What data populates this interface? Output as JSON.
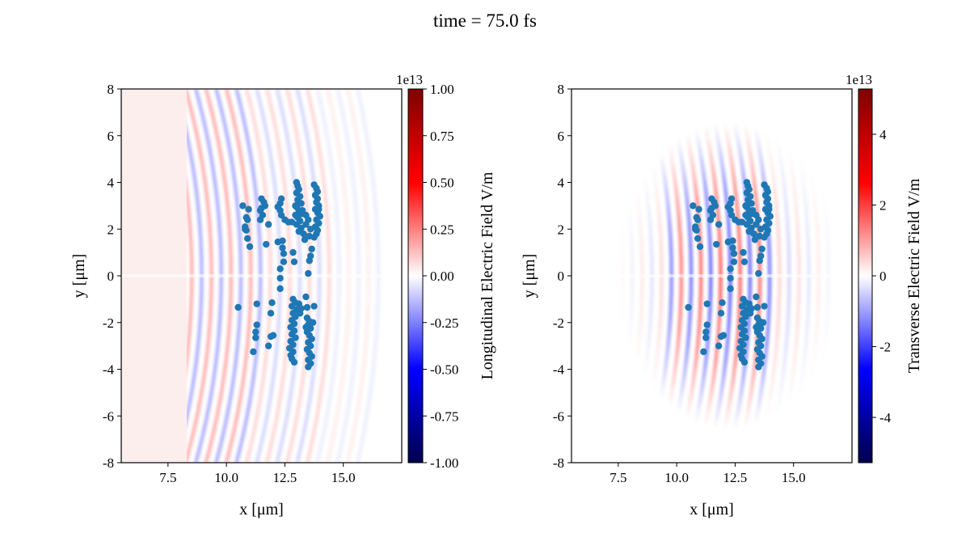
{
  "chart_data": {
    "title": "time = 75.0 fs",
    "panels": [
      {
        "type": "heatmap+scatter",
        "xlabel": "x [μm]",
        "ylabel": "y [μm]",
        "xlim": [
          5.5,
          17.5
        ],
        "ylim": [
          -8,
          8
        ],
        "xticks": [
          7.5,
          10.0,
          12.5,
          15.0
        ],
        "xtick_labels": [
          "7.5",
          "10.0",
          "12.5",
          "15.0"
        ],
        "yticks": [
          8,
          6,
          4,
          2,
          0,
          -2,
          -4,
          -6,
          -8
        ],
        "ytick_labels": [
          "8",
          "6",
          "4",
          "2",
          "0",
          "-2",
          "-4",
          "-6",
          "-8"
        ],
        "field": "longitudinal",
        "colorbar": {
          "label": "Longitudinal Electric Field V/m",
          "offset_text": "1e13",
          "vlim": [
            -1.0,
            1.0
          ],
          "ticks": [
            1.0,
            0.75,
            0.5,
            0.25,
            0.0,
            -0.25,
            -0.5,
            -0.75,
            -1.0
          ],
          "tick_labels": [
            "1.00",
            "0.75",
            "0.50",
            "0.25",
            "0.00",
            "-0.25",
            "-0.50",
            "-0.75",
            "-1.00"
          ],
          "colormap": "seismic"
        }
      },
      {
        "type": "heatmap+scatter",
        "xlabel": "x [μm]",
        "ylabel": "y [μm]",
        "xlim": [
          5.5,
          17.5
        ],
        "ylim": [
          -8,
          8
        ],
        "xticks": [
          7.5,
          10.0,
          12.5,
          15.0
        ],
        "xtick_labels": [
          "7.5",
          "10.0",
          "12.5",
          "15.0"
        ],
        "yticks": [
          8,
          6,
          4,
          2,
          0,
          -2,
          -4,
          -6,
          -8
        ],
        "ytick_labels": [
          "8",
          "6",
          "4",
          "2",
          "0",
          "-2",
          "-4",
          "-6",
          "-8"
        ],
        "field": "transverse",
        "colorbar": {
          "label": "Transverse Electric Field V/m",
          "offset_text": "1e13",
          "vlim": [
            -5.28,
            5.28
          ],
          "ticks": [
            4,
            2,
            0,
            -2,
            -4
          ],
          "tick_labels": [
            "4",
            "2",
            "0",
            "-2",
            "-4"
          ],
          "colormap": "seismic"
        }
      }
    ],
    "scatter_color": "#1f77b4",
    "particles": [
      [
        10.7,
        3.0
      ],
      [
        10.95,
        2.85
      ],
      [
        10.85,
        2.5
      ],
      [
        10.9,
        2.4
      ],
      [
        10.8,
        2.1
      ],
      [
        10.85,
        1.95
      ],
      [
        10.9,
        1.6
      ],
      [
        11.0,
        1.25
      ],
      [
        10.8,
        2.0
      ],
      [
        11.5,
        3.3
      ],
      [
        11.6,
        3.15
      ],
      [
        11.65,
        3.0
      ],
      [
        11.45,
        2.8
      ],
      [
        11.5,
        2.9
      ],
      [
        11.45,
        2.4
      ],
      [
        11.8,
        2.2
      ],
      [
        11.7,
        1.35
      ],
      [
        11.55,
        2.6
      ],
      [
        12.35,
        3.3
      ],
      [
        12.2,
        2.95
      ],
      [
        12.3,
        2.8
      ],
      [
        12.35,
        2.6
      ],
      [
        12.5,
        2.4
      ],
      [
        12.65,
        2.3
      ],
      [
        12.8,
        2.3
      ],
      [
        12.3,
        3.1
      ],
      [
        13.0,
        4.0
      ],
      [
        13.05,
        3.85
      ],
      [
        13.1,
        3.7
      ],
      [
        13.0,
        3.55
      ],
      [
        13.15,
        3.4
      ],
      [
        13.05,
        3.25
      ],
      [
        13.2,
        3.1
      ],
      [
        13.0,
        2.95
      ],
      [
        13.1,
        2.8
      ],
      [
        13.2,
        2.65
      ],
      [
        13.05,
        2.5
      ],
      [
        13.15,
        2.35
      ],
      [
        13.0,
        2.2
      ],
      [
        13.2,
        2.05
      ],
      [
        13.1,
        1.9
      ],
      [
        12.95,
        3.0
      ],
      [
        13.25,
        2.8
      ],
      [
        12.95,
        2.6
      ],
      [
        13.75,
        3.9
      ],
      [
        13.85,
        3.75
      ],
      [
        13.9,
        3.6
      ],
      [
        13.8,
        3.45
      ],
      [
        13.9,
        3.3
      ],
      [
        13.85,
        3.15
      ],
      [
        13.95,
        3.0
      ],
      [
        13.8,
        2.85
      ],
      [
        13.9,
        2.7
      ],
      [
        14.0,
        2.55
      ],
      [
        13.85,
        2.4
      ],
      [
        13.95,
        2.25
      ],
      [
        13.8,
        2.1
      ],
      [
        13.9,
        1.95
      ],
      [
        13.85,
        1.8
      ],
      [
        13.75,
        1.65
      ],
      [
        13.95,
        2.85
      ],
      [
        13.4,
        2.6
      ],
      [
        13.5,
        2.4
      ],
      [
        13.4,
        2.2
      ],
      [
        13.6,
        2.0
      ],
      [
        13.3,
        1.8
      ],
      [
        13.55,
        1.7
      ],
      [
        12.2,
        1.45
      ],
      [
        12.4,
        1.5
      ],
      [
        12.4,
        1.2
      ],
      [
        12.45,
        0.95
      ],
      [
        12.45,
        0.6
      ],
      [
        12.3,
        0.3
      ],
      [
        12.85,
        1.0
      ],
      [
        12.9,
        0.6
      ],
      [
        13.35,
        1.55
      ],
      [
        13.65,
        1.15
      ],
      [
        13.55,
        0.65
      ],
      [
        13.6,
        0.85
      ],
      [
        13.5,
        0.1
      ],
      [
        12.3,
        -0.1
      ],
      [
        12.3,
        -0.55
      ],
      [
        10.5,
        -1.35
      ],
      [
        11.3,
        -1.2
      ],
      [
        11.95,
        -1.15
      ],
      [
        11.9,
        -1.6
      ],
      [
        11.3,
        -2.1
      ],
      [
        11.25,
        -2.4
      ],
      [
        11.25,
        -2.65
      ],
      [
        11.15,
        -3.25
      ],
      [
        11.9,
        -2.6
      ],
      [
        11.8,
        -3.0
      ],
      [
        12.0,
        -2.55
      ],
      [
        12.85,
        -1.0
      ],
      [
        12.95,
        -1.15
      ],
      [
        12.8,
        -1.3
      ],
      [
        13.0,
        -1.45
      ],
      [
        12.85,
        -1.6
      ],
      [
        12.95,
        -1.75
      ],
      [
        12.8,
        -1.9
      ],
      [
        12.9,
        -2.05
      ],
      [
        12.75,
        -2.2
      ],
      [
        12.9,
        -2.35
      ],
      [
        12.8,
        -2.5
      ],
      [
        12.95,
        -2.65
      ],
      [
        12.75,
        -2.8
      ],
      [
        12.85,
        -2.95
      ],
      [
        12.7,
        -3.1
      ],
      [
        12.85,
        -3.25
      ],
      [
        12.75,
        -3.4
      ],
      [
        12.8,
        -3.55
      ],
      [
        12.9,
        -3.7
      ],
      [
        13.1,
        -1.2
      ],
      [
        13.15,
        -1.6
      ],
      [
        13.2,
        -1.4
      ],
      [
        13.45,
        -1.8
      ],
      [
        13.55,
        -1.95
      ],
      [
        13.5,
        -2.1
      ],
      [
        13.6,
        -2.25
      ],
      [
        13.45,
        -2.4
      ],
      [
        13.55,
        -2.55
      ],
      [
        13.65,
        -2.7
      ],
      [
        13.5,
        -2.85
      ],
      [
        13.6,
        -3.0
      ],
      [
        13.45,
        -3.15
      ],
      [
        13.55,
        -3.3
      ],
      [
        13.65,
        -3.45
      ],
      [
        13.5,
        -3.6
      ],
      [
        13.6,
        -3.75
      ],
      [
        13.5,
        -3.9
      ],
      [
        13.4,
        -2.2
      ],
      [
        13.7,
        -2.0
      ],
      [
        13.4,
        -0.9
      ],
      [
        13.75,
        -1.3
      ],
      [
        13.45,
        -1.35
      ]
    ]
  }
}
